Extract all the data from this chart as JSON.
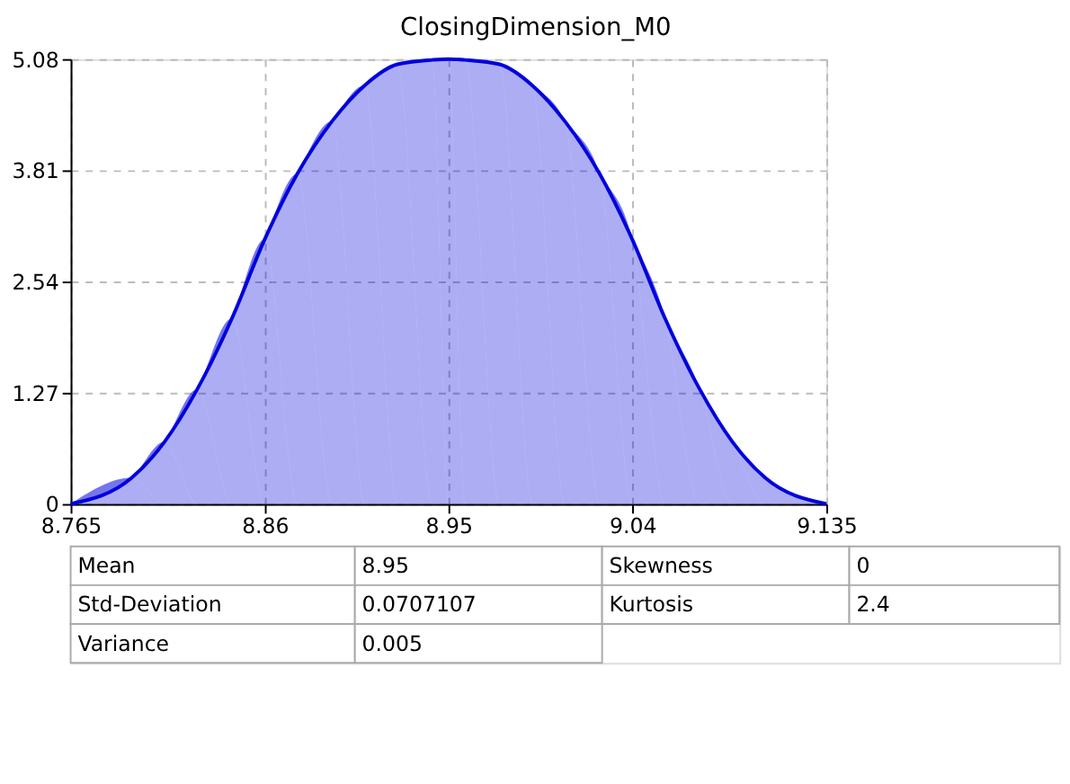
{
  "chart_data": {
    "type": "area",
    "title": "ClosingDimension_M0",
    "x": [
      8.765,
      8.795,
      8.811,
      8.827,
      8.844,
      8.86,
      8.876,
      8.893,
      8.909,
      8.925,
      8.942,
      8.95,
      8.958,
      8.975,
      8.991,
      9.007,
      9.024,
      9.04,
      9.056,
      9.073,
      9.089,
      9.105,
      9.135
    ],
    "series": [
      {
        "color": "#0000dd",
        "values": [
          0,
          0.3,
          0.71,
          1.31,
          2.12,
          3.02,
          3.77,
          4.37,
          4.78,
          5.02,
          5.07,
          5.08,
          5.07,
          5.02,
          4.78,
          4.37,
          3.77,
          3.02,
          2.12,
          1.31,
          0.71,
          0.3,
          0
        ]
      }
    ],
    "xlim": [
      8.765,
      9.135
    ],
    "xticks": [
      8.765,
      8.86,
      8.95,
      9.04,
      9.135
    ],
    "ylim": [
      0,
      5.08
    ],
    "yticks": [
      0,
      1.27,
      2.54,
      3.81,
      5.08
    ],
    "grid": true,
    "marker": "none",
    "line_style": "solid",
    "annotations": [
      "Mean",
      "8.95",
      "Skewness",
      "0",
      "Std-Deviation",
      "0.0707107",
      "Kurtosis",
      "2.4",
      "Variance",
      "0.005"
    ]
  }
}
